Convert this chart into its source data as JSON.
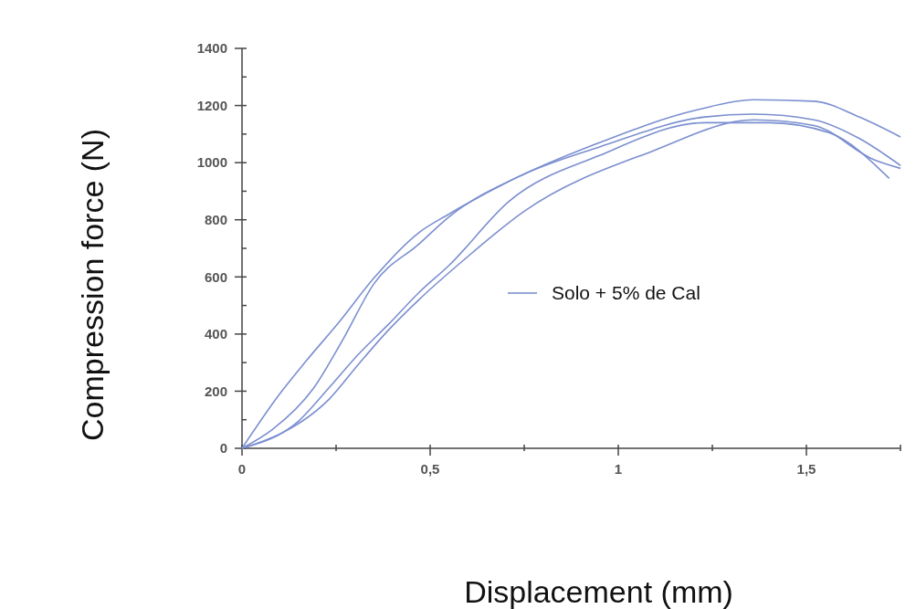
{
  "chart_data": {
    "type": "line",
    "xlabel": "Displacement (mm)",
    "ylabel": "Compression force (N)",
    "xlim": [
      0,
      1.75
    ],
    "ylim": [
      0,
      1400
    ],
    "xticks": [
      0,
      {
        "value": 0.25,
        "label": null
      },
      {
        "value": 0.5,
        "label": "0,5"
      },
      {
        "value": 0.75,
        "label": null
      },
      1,
      {
        "value": 1.25,
        "label": null
      },
      {
        "value": 1.5,
        "label": "1,5"
      },
      {
        "value": 1.75,
        "label": null
      }
    ],
    "yticks": [
      0,
      {
        "value": 100,
        "label": null
      },
      200,
      {
        "value": 300,
        "label": null
      },
      400,
      {
        "value": 500,
        "label": null
      },
      600,
      {
        "value": 700,
        "label": null
      },
      800,
      {
        "value": 900,
        "label": null
      },
      1000,
      {
        "value": 1100,
        "label": null
      },
      1200,
      {
        "value": 1300,
        "label": null
      },
      1400
    ],
    "grid": false,
    "legend": "right",
    "marker": "none",
    "line_style": "solid",
    "series": [
      {
        "name": "Solo + 5% de Cal",
        "color": "#7b8fd0",
        "x": [
          0,
          0.1,
          0.17,
          0.26,
          0.35,
          0.47,
          0.55,
          0.71,
          0.94,
          1.21,
          1.36,
          1.52,
          1.64,
          1.75
        ],
        "values": [
          0,
          190,
          305,
          445,
          595,
          755,
          820,
          935,
          1065,
          1185,
          1220,
          1215,
          1160,
          1090
        ]
      },
      {
        "color": "#7b8fd0",
        "x": [
          0,
          0.08,
          0.19,
          0.27,
          0.35,
          0.47,
          0.55,
          0.75,
          0.95,
          1.23,
          1.36,
          1.52,
          1.64,
          1.75
        ],
        "values": [
          0,
          65,
          210,
          385,
          575,
          715,
          810,
          960,
          1055,
          1160,
          1170,
          1150,
          1085,
          990
        ]
      },
      {
        "color": "#7b8fd0",
        "x": [
          0,
          0.15,
          0.23,
          0.31,
          0.39,
          0.47,
          0.55,
          0.71,
          0.95,
          1.23,
          1.4,
          1.56,
          1.72
        ],
        "values": [
          0,
          95,
          210,
          330,
          435,
          545,
          640,
          865,
          1025,
          1140,
          1140,
          1105,
          945
        ]
      },
      {
        "color": "#7b8fd0",
        "x": [
          0,
          0.1,
          0.16,
          0.23,
          0.31,
          0.39,
          0.47,
          0.59,
          0.75,
          1.09,
          1.36,
          1.52,
          1.68,
          1.75
        ],
        "values": [
          0,
          50,
          95,
          170,
          295,
          415,
          520,
          660,
          830,
          1040,
          1150,
          1130,
          1010,
          980
        ]
      }
    ]
  }
}
